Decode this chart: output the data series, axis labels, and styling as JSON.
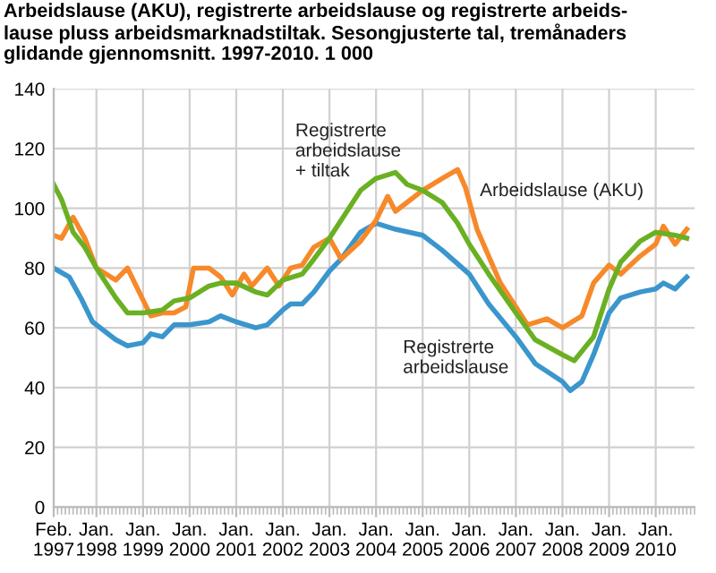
{
  "chart_data": {
    "type": "line",
    "title": "Arbeidslause (AKU), registrerte arbeidslause og registrerte arbeids-\nlause pluss arbeidsmarknadstiltak. Sesongjusterte tal, tremånaders\nglidande gjennomsnitt. 1997-2010. 1 000",
    "series": [
      {
        "name": "Registrerte\narbeidslause",
        "color": "#3a96cc",
        "x": [
          "1997-02",
          "1997-06",
          "1997-09",
          "1997-12",
          "1998-03",
          "1998-06",
          "1998-09",
          "1999-01",
          "1999-03",
          "1999-06",
          "1999-09",
          "2000-01",
          "2000-06",
          "2000-09",
          "2001-01",
          "2001-06",
          "2001-09",
          "2002-01",
          "2002-03",
          "2002-06",
          "2002-09",
          "2003-01",
          "2003-04",
          "2003-09",
          "2004-01",
          "2004-06",
          "2005-01",
          "2005-06",
          "2006-01",
          "2006-06",
          "2007-01",
          "2007-06",
          "2008-01",
          "2008-03",
          "2008-06",
          "2008-09",
          "2009-01",
          "2009-04",
          "2009-09",
          "2010-01",
          "2010-03",
          "2010-06",
          "2010-09"
        ],
        "values": [
          80,
          77,
          70,
          62,
          59,
          56,
          54,
          55,
          58,
          57,
          61,
          61,
          62,
          64,
          62,
          60,
          61,
          66,
          68,
          68,
          72,
          79,
          83,
          92,
          95,
          93,
          91,
          86,
          78,
          68,
          57,
          48,
          42,
          39,
          42,
          51,
          65,
          70,
          72,
          73,
          75,
          73,
          77
        ]
      },
      {
        "name": "Arbeidslause (AKU)",
        "color": "#f7892a",
        "x": [
          "1997-02",
          "1997-04",
          "1997-07",
          "1997-10",
          "1998-01",
          "1998-06",
          "1998-09",
          "1998-12",
          "1999-03",
          "1999-06",
          "1999-09",
          "1999-12",
          "2000-02",
          "2000-06",
          "2000-09",
          "2000-12",
          "2001-03",
          "2001-05",
          "2001-09",
          "2001-12",
          "2002-03",
          "2002-06",
          "2002-09",
          "2003-01",
          "2003-04",
          "2003-09",
          "2004-01",
          "2004-04",
          "2004-06",
          "2004-09",
          "2005-01",
          "2005-06",
          "2005-10",
          "2005-12",
          "2006-03",
          "2006-09",
          "2007-01",
          "2007-04",
          "2007-09",
          "2008-01",
          "2008-06",
          "2008-09",
          "2009-01",
          "2009-04",
          "2009-09",
          "2010-01",
          "2010-03",
          "2010-06",
          "2010-09"
        ],
        "values": [
          91,
          90,
          97,
          90,
          80,
          76,
          80,
          72,
          64,
          65,
          65,
          67,
          80,
          80,
          77,
          71,
          78,
          74,
          80,
          74,
          80,
          81,
          87,
          90,
          83,
          89,
          96,
          104,
          99,
          102,
          106,
          110,
          113,
          107,
          93,
          75,
          67,
          61,
          63,
          60,
          64,
          75,
          81,
          78,
          84,
          88,
          94,
          88,
          93
        ]
      },
      {
        "name": "Registrerte\narbeidslause\n+ tiltak",
        "color": "#6ab023",
        "x": [
          "1997-02",
          "1997-04",
          "1997-07",
          "1997-10",
          "1998-01",
          "1998-06",
          "1998-09",
          "1999-01",
          "1999-06",
          "1999-09",
          "2000-01",
          "2000-06",
          "2000-09",
          "2001-01",
          "2001-06",
          "2001-09",
          "2002-01",
          "2002-06",
          "2002-09",
          "2003-01",
          "2003-06",
          "2003-09",
          "2004-01",
          "2004-06",
          "2004-09",
          "2005-01",
          "2005-06",
          "2005-10",
          "2006-01",
          "2006-06",
          "2007-01",
          "2007-06",
          "2008-01",
          "2008-04",
          "2008-09",
          "2009-01",
          "2009-04",
          "2009-09",
          "2010-01",
          "2010-06",
          "2010-09"
        ],
        "values": [
          108,
          103,
          92,
          87,
          80,
          70,
          65,
          65,
          66,
          69,
          70,
          74,
          75,
          75,
          72,
          71,
          76,
          78,
          83,
          90,
          100,
          106,
          110,
          112,
          108,
          106,
          102,
          95,
          88,
          78,
          65,
          56,
          51,
          49,
          57,
          73,
          82,
          89,
          92,
          91,
          90
        ]
      }
    ],
    "xlim": [
      "1997-02",
      "2010-11"
    ],
    "xticks": [
      {
        "value": "1997-02",
        "label": "Feb.\n1997"
      },
      {
        "value": "1998-01",
        "label": "Jan.\n1998"
      },
      {
        "value": "1999-01",
        "label": "Jan.\n1999"
      },
      {
        "value": "2000-01",
        "label": "Jan.\n2000"
      },
      {
        "value": "2001-01",
        "label": "Jan.\n2001"
      },
      {
        "value": "2002-01",
        "label": "Jan.\n2002"
      },
      {
        "value": "2003-01",
        "label": "Jan.\n2003"
      },
      {
        "value": "2004-01",
        "label": "Jan.\n2004"
      },
      {
        "value": "2005-01",
        "label": "Jan.\n2005"
      },
      {
        "value": "2006-01",
        "label": "Jan.\n2006"
      },
      {
        "value": "2007-01",
        "label": "Jan.\n2007"
      },
      {
        "value": "2008-01",
        "label": "Jan.\n2008"
      },
      {
        "value": "2009-01",
        "label": "Jan.\n2009"
      },
      {
        "value": "2010-01",
        "label": "Jan.\n2010"
      }
    ],
    "ylim": [
      0,
      140
    ],
    "yticks": [
      0,
      20,
      40,
      60,
      80,
      100,
      120,
      140
    ],
    "grid": true,
    "line_style": "solid"
  }
}
